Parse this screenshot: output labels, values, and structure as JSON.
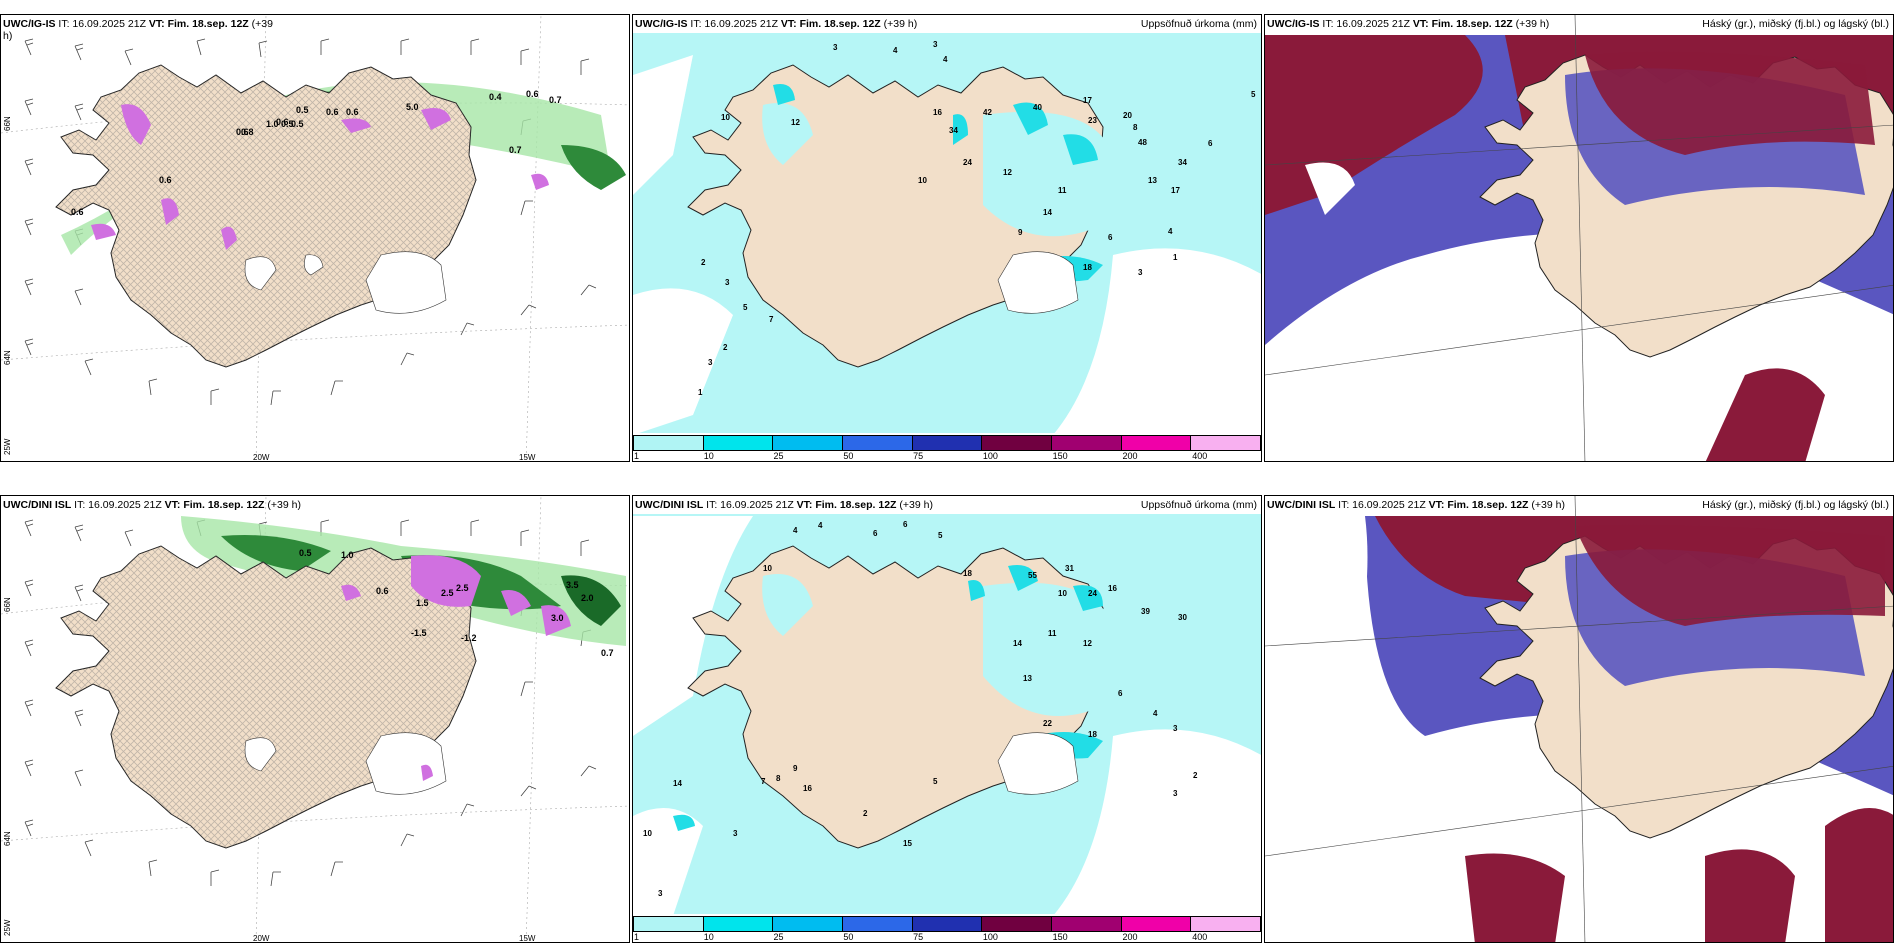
{
  "panels": {
    "p1": {
      "model": "UWC/IG-IS",
      "it": "IT: 16.09.2025 21Z",
      "vt": "VT: Fim. 18.sep. 12Z",
      "lead": "(+39",
      "lead2": "h)",
      "right": ""
    },
    "p2": {
      "model": "UWC/IG-IS",
      "it": "IT: 16.09.2025 21Z",
      "vt": "VT: Fim. 18.sep. 12Z",
      "lead": "(+39 h)",
      "right": "Uppsöfnuð úrkoma (mm)"
    },
    "p3": {
      "model": "UWC/IG-IS",
      "it": "IT: 16.09.2025 21Z",
      "vt": "VT: Fim. 18.sep. 12Z",
      "lead": "(+39 h)",
      "right": "Háský (gr.), miðský (fj.bl.) og lágský (bl.)"
    },
    "p4": {
      "model": "UWC/DINI ISL",
      "it": "IT: 16.09.2025 21Z",
      "vt": "VT: Fim. 18.sep. 12Z",
      "lead": "(+39 h)",
      "right": ""
    },
    "p5": {
      "model": "UWC/DINI ISL",
      "it": "IT: 16.09.2025 21Z",
      "vt": "VT: Fim. 18.sep. 12Z",
      "lead": "(+39 h)",
      "right": "Uppsöfnuð úrkoma (mm)"
    },
    "p6": {
      "model": "UWC/DINI ISL",
      "it": "IT: 16.09.2025 21Z",
      "vt": "VT: Fim. 18.sep. 12Z",
      "lead": "(+39 h)",
      "right": "Háský (gr.), miðský (fj.bl.) og lágský (bl.)"
    }
  },
  "grid_labels": {
    "lon1": "20W",
    "lon2": "15W",
    "lat1": "66N",
    "lat2": "64N",
    "lat3": "25W"
  },
  "colorbar": {
    "labels": [
      "1",
      "10",
      "25",
      "50",
      "75",
      "100",
      "150",
      "200",
      "400"
    ],
    "colors": [
      "#b0f4f4",
      "#00e4ec",
      "#00bcf0",
      "#2c68e8",
      "#2030b0",
      "#700040",
      "#a00070",
      "#f000a8",
      "#f8b0f0"
    ]
  },
  "colors": {
    "land": "#f2dfc9",
    "sea_precip": "#b6f6f6",
    "precip_mid": "#22dde6",
    "high_cloud": "#8a1a3a",
    "mid_cloud": "#5a56c0",
    "low_cloud": "#3a8ae0",
    "snow_green": "#2e8a3a",
    "snow_light": "#a6e6a6",
    "snow_pink": "#d070e0"
  },
  "precip_values_top": [
    "3",
    "4",
    "3",
    "4",
    "5",
    "6",
    "8",
    "10",
    "12",
    "16",
    "17",
    "23",
    "20",
    "40",
    "42",
    "34",
    "24",
    "10",
    "12",
    "48",
    "13",
    "34",
    "17",
    "11",
    "14",
    "9",
    "18",
    "6",
    "4",
    "3",
    "1",
    "2",
    "3",
    "5",
    "7",
    "2",
    "3",
    "2"
  ],
  "precip_values_bottom": [
    "4",
    "4",
    "6",
    "6",
    "5",
    "10",
    "18",
    "55",
    "31",
    "10",
    "24",
    "16",
    "39",
    "30",
    "12",
    "11",
    "14",
    "13",
    "22",
    "18",
    "6",
    "4",
    "3",
    "2",
    "3",
    "14",
    "10",
    "7",
    "8",
    "9",
    "16",
    "15",
    "2",
    "3",
    "5",
    "3"
  ],
  "snow_values_top": [
    "0.5",
    "0.6",
    "0.6",
    "0.6",
    "5.0",
    "0.6",
    "0.7",
    "0.7",
    "0.4",
    "0.6",
    "0.6",
    "0.5",
    "0.6",
    "0.5",
    "0.8",
    "1.0"
  ],
  "snow_values_bottom": [
    "0.5",
    "1.0",
    "2.5",
    "1.5",
    "-1.5",
    "-1.2",
    "3.5",
    "3.0",
    "0.7",
    "2.0",
    "0.6",
    "2.5"
  ]
}
